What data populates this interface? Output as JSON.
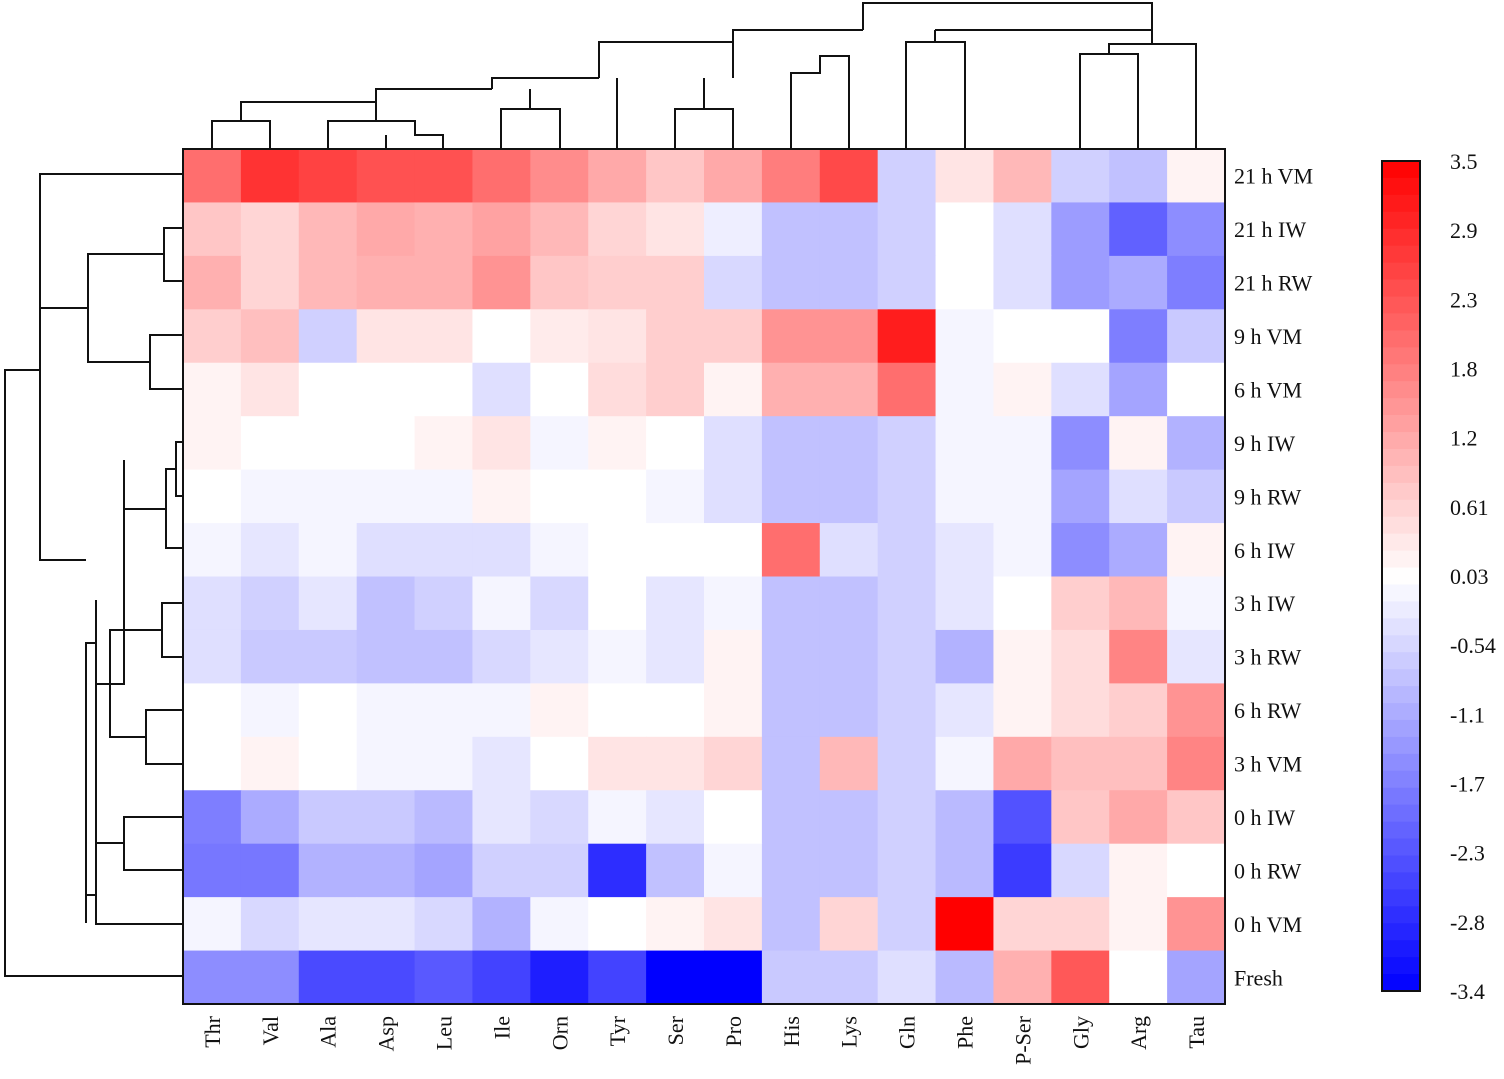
{
  "chart_data": {
    "type": "heatmap",
    "title": "",
    "xlabel": "",
    "ylabel": "",
    "columns": [
      "Thr",
      "Val",
      "Ala",
      "Asp",
      "Leu",
      "Ile",
      "Orn",
      "Tyr",
      "Ser",
      "Pro",
      "His",
      "Lys",
      "Gln",
      "Phe",
      "P-Ser",
      "Gly",
      "Arg",
      "Tau"
    ],
    "rows": [
      "21 h VM",
      "21 h IW",
      "21 h RW",
      "9 h VM",
      "6 h VM",
      "9 h IW",
      "9 h RW",
      "6 h IW",
      "3 h IW",
      "3 h RW",
      "6 h RW",
      "3 h VM",
      "0 h IW",
      "0 h RW",
      "0 h VM",
      "Fresh"
    ],
    "values": [
      [
        2.0,
        2.8,
        2.6,
        2.4,
        2.4,
        2.0,
        1.6,
        1.2,
        0.8,
        1.2,
        1.8,
        2.5,
        -0.6,
        0.4,
        1.0,
        -0.6,
        -0.8,
        0.2
      ],
      [
        0.8,
        0.6,
        1.0,
        1.2,
        1.1,
        1.3,
        1.0,
        0.6,
        0.4,
        -0.2,
        -0.8,
        -0.8,
        -0.6,
        0.03,
        -0.4,
        -1.3,
        -2.1,
        -1.5
      ],
      [
        1.1,
        0.6,
        1.0,
        1.1,
        1.1,
        1.5,
        0.8,
        0.7,
        0.7,
        -0.5,
        -0.8,
        -0.8,
        -0.6,
        0.03,
        -0.4,
        -1.3,
        -1.1,
        -1.7
      ],
      [
        0.7,
        0.9,
        -0.6,
        0.4,
        0.4,
        0.03,
        0.3,
        0.4,
        0.7,
        0.7,
        1.5,
        1.5,
        3.1,
        -0.1,
        0.03,
        0.03,
        -1.7,
        -0.7
      ],
      [
        0.2,
        0.4,
        0.03,
        0.03,
        0.03,
        -0.4,
        0.03,
        0.5,
        0.7,
        0.2,
        1.1,
        1.1,
        2.0,
        -0.1,
        0.2,
        -0.4,
        -1.2,
        0.03
      ],
      [
        0.2,
        0.03,
        0.03,
        0.03,
        0.2,
        0.4,
        -0.1,
        0.2,
        0.03,
        -0.4,
        -0.8,
        -0.8,
        -0.6,
        -0.1,
        -0.1,
        -1.5,
        0.2,
        -1.0
      ],
      [
        0.03,
        -0.1,
        -0.1,
        -0.1,
        -0.1,
        0.2,
        0.03,
        0.03,
        -0.1,
        -0.4,
        -0.8,
        -0.8,
        -0.6,
        -0.1,
        -0.1,
        -1.2,
        -0.4,
        -0.7
      ],
      [
        -0.1,
        -0.3,
        -0.1,
        -0.4,
        -0.4,
        -0.4,
        -0.1,
        0.03,
        0.03,
        0.03,
        2.0,
        -0.4,
        -0.6,
        -0.3,
        -0.1,
        -1.5,
        -1.1,
        0.2
      ],
      [
        -0.4,
        -0.6,
        -0.3,
        -0.8,
        -0.6,
        -0.1,
        -0.5,
        0.03,
        -0.3,
        -0.1,
        -0.8,
        -0.8,
        -0.6,
        -0.3,
        0.03,
        0.7,
        1.0,
        -0.1
      ],
      [
        -0.4,
        -0.7,
        -0.7,
        -0.8,
        -0.8,
        -0.5,
        -0.3,
        -0.1,
        -0.3,
        0.2,
        -0.8,
        -0.8,
        -0.6,
        -1.0,
        0.2,
        0.5,
        1.7,
        -0.3
      ],
      [
        0.03,
        -0.1,
        0.03,
        -0.1,
        -0.1,
        -0.1,
        0.2,
        0.03,
        0.03,
        0.2,
        -0.8,
        -0.8,
        -0.6,
        -0.3,
        0.2,
        0.5,
        0.7,
        1.5
      ],
      [
        0.03,
        0.2,
        0.03,
        -0.1,
        -0.1,
        -0.3,
        0.03,
        0.4,
        0.4,
        0.6,
        -0.8,
        1.0,
        -0.6,
        -0.1,
        1.2,
        0.9,
        0.9,
        1.7
      ],
      [
        -1.7,
        -1.1,
        -0.7,
        -0.7,
        -0.9,
        -0.3,
        -0.5,
        -0.1,
        -0.3,
        0.03,
        -0.8,
        -0.8,
        -0.6,
        -0.9,
        -2.3,
        0.8,
        1.2,
        0.8
      ],
      [
        -1.8,
        -1.8,
        -1.0,
        -1.0,
        -1.2,
        -0.6,
        -0.6,
        -2.8,
        -0.8,
        -0.1,
        -0.8,
        -0.8,
        -0.6,
        -0.9,
        -2.6,
        -0.5,
        0.2,
        0.03
      ],
      [
        -0.1,
        -0.5,
        -0.3,
        -0.3,
        -0.5,
        -1.0,
        -0.1,
        0.03,
        0.2,
        0.4,
        -0.8,
        0.6,
        -0.6,
        3.5,
        0.6,
        0.6,
        0.2,
        1.5
      ],
      [
        -1.5,
        -1.5,
        -2.4,
        -2.4,
        -2.2,
        -2.5,
        -3.0,
        -2.5,
        -3.4,
        -3.4,
        -0.7,
        -0.7,
        -0.4,
        -0.9,
        1.1,
        2.3,
        0.03,
        -1.2
      ]
    ],
    "colorbar": {
      "min": -3.4,
      "max": 3.5,
      "tick_labels": [
        "3.5",
        "2.9",
        "2.3",
        "1.8",
        "1.2",
        "0.61",
        "0.03",
        "-0.54",
        "-1.1",
        "-1.7",
        "-2.3",
        "-2.8",
        "-3.4"
      ],
      "low_color": "#0000ff",
      "mid_color": "#ffffff",
      "high_color": "#ff0000"
    },
    "grid": false,
    "legend_position": "right",
    "dendrograms": [
      "top",
      "left"
    ]
  }
}
